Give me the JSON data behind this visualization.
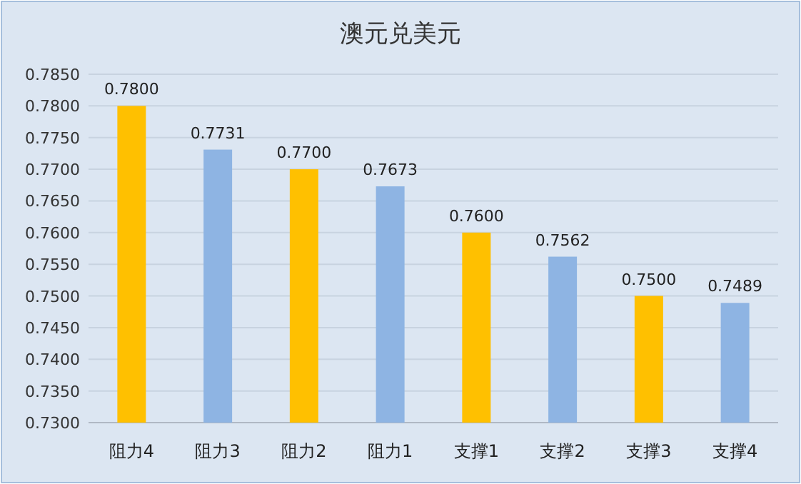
{
  "chart_data": {
    "type": "bar",
    "title": "澳元兑美元",
    "categories": [
      "阻力4",
      "阻力3",
      "阻力2",
      "阻力1",
      "支撑1",
      "支撑2",
      "支撑3",
      "支撑4"
    ],
    "values": [
      0.78,
      0.7731,
      0.77,
      0.7673,
      0.76,
      0.7562,
      0.75,
      0.7489
    ],
    "colors": [
      "#ffc000",
      "#8eb4e3",
      "#ffc000",
      "#8eb4e3",
      "#ffc000",
      "#8eb4e3",
      "#ffc000",
      "#8eb4e3"
    ],
    "value_labels": [
      "0.7800",
      "0.7731",
      "0.7700",
      "0.7673",
      "0.7600",
      "0.7562",
      "0.7500",
      "0.7489"
    ],
    "ylim": [
      0.73,
      0.785
    ],
    "yticks": [
      {
        "value": 0.73,
        "label": "0.7300"
      },
      {
        "value": 0.735,
        "label": "0.7350"
      },
      {
        "value": 0.74,
        "label": "0.7400"
      },
      {
        "value": 0.745,
        "label": "0.7450"
      },
      {
        "value": 0.75,
        "label": "0.7500"
      },
      {
        "value": 0.755,
        "label": "0.7550"
      },
      {
        "value": 0.76,
        "label": "0.7600"
      },
      {
        "value": 0.765,
        "label": "0.7650"
      },
      {
        "value": 0.77,
        "label": "0.7700"
      },
      {
        "value": 0.775,
        "label": "0.7750"
      },
      {
        "value": 0.78,
        "label": "0.7800"
      },
      {
        "value": 0.785,
        "label": "0.7850"
      }
    ],
    "grid": "y"
  }
}
